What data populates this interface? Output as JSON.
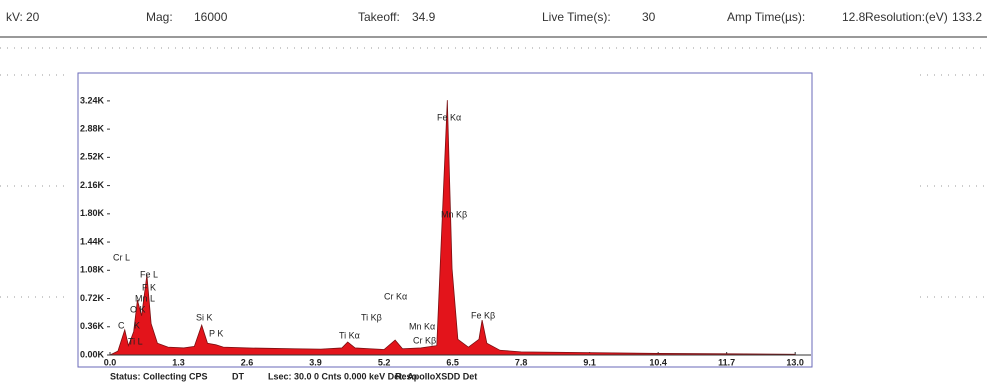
{
  "header": {
    "fields": [
      {
        "label": "kV:",
        "value": "20"
      },
      {
        "label": "Mag:",
        "value": "16000"
      },
      {
        "label": "Takeoff:",
        "value": "34.9"
      },
      {
        "label": "Live Time(s):",
        "value": "30"
      },
      {
        "label": "Amp Time(µs):",
        "value": "12.8"
      },
      {
        "label": "Resolution:(eV)",
        "value": "133.2"
      }
    ]
  },
  "chart_data": {
    "type": "area",
    "color": "#e3141b",
    "line_color": "#7a0f12",
    "x": [
      0.0,
      0.15,
      0.28,
      0.35,
      0.45,
      0.52,
      0.6,
      0.7,
      0.78,
      0.9,
      1.1,
      1.4,
      1.6,
      1.74,
      1.85,
      2.01,
      2.15,
      2.6,
      3.0,
      3.5,
      4.0,
      4.4,
      4.51,
      4.65,
      4.93,
      5.2,
      5.41,
      5.55,
      5.9,
      6.2,
      6.4,
      6.49,
      6.6,
      6.8,
      7.0,
      7.06,
      7.15,
      7.4,
      7.8,
      9.1,
      10.4,
      11.7,
      13.0
    ],
    "values": [
      0,
      50,
      320,
      120,
      300,
      700,
      500,
      1020,
      400,
      150,
      100,
      90,
      110,
      380,
      150,
      130,
      100,
      90,
      85,
      80,
      75,
      90,
      166,
      90,
      80,
      70,
      190,
      80,
      90,
      120,
      3250,
      1100,
      200,
      100,
      200,
      446,
      150,
      60,
      40,
      30,
      20,
      15,
      10
    ],
    "xlim": [
      0,
      13.3
    ],
    "ylim": [
      0,
      3570
    ],
    "xticks": [
      {
        "value": 0,
        "label": "0.0"
      },
      1.3,
      2.6,
      3.9,
      5.2,
      6.5,
      7.8,
      9.1,
      10.4,
      11.7,
      {
        "value": 13,
        "label": "13.0"
      }
    ],
    "yticks": [
      {
        "value": 0,
        "label": "0.00K"
      },
      {
        "value": 360,
        "label": "0.36K"
      },
      {
        "value": 720,
        "label": "0.72K"
      },
      {
        "value": 1080,
        "label": "1.08K"
      },
      {
        "value": 1440,
        "label": "1.44K"
      },
      {
        "value": 1800,
        "label": "1.80K"
      },
      {
        "value": 2160,
        "label": "2.16K"
      },
      {
        "value": 2520,
        "label": "2.52K"
      },
      {
        "value": 2880,
        "label": "2.88K"
      },
      {
        "value": 3240,
        "label": "3.24K"
      }
    ],
    "annotations": [
      "Cr L",
      "Fe L",
      "F K",
      "Mn L",
      "O K",
      "C",
      "K",
      "Ti L",
      "Si K",
      "P K",
      "Ti Kα",
      "Ti Kβ",
      "Cr Kα",
      "Mn Kα",
      "Cr Kβ",
      "Mn Kβ",
      "Fe Kα",
      "Fe Kβ"
    ]
  },
  "status": [
    "Status: Collecting CPS",
    "DT",
    "Lsec: 30.0 0 Cnts 0.000 keV Det: ApolloXSDD Det",
    "Reso"
  ]
}
